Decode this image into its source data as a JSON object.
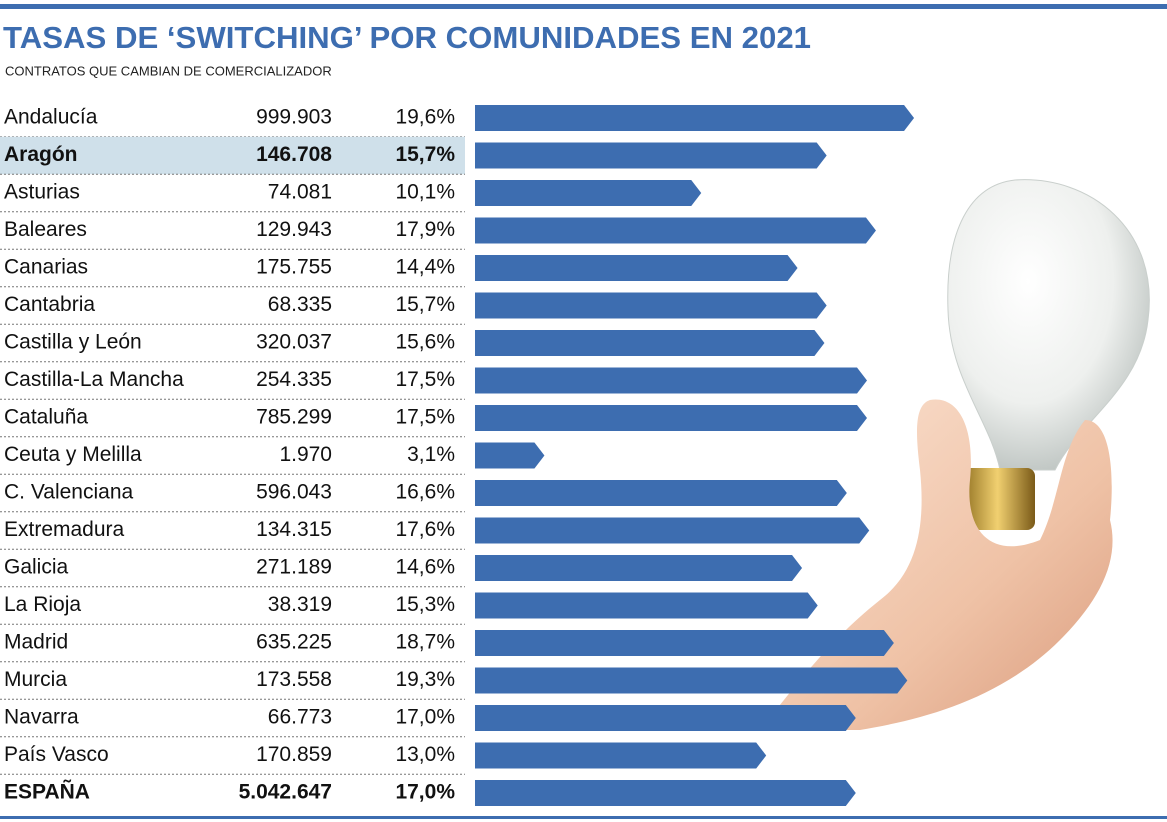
{
  "chart_data": {
    "type": "bar",
    "title": "TASAS DE ‘SWITCHING’ POR COMUNIDADES EN 2021",
    "subtitle": "CONTRATOS QUE CAMBIAN DE COMERCIALIZADOR",
    "categories": [
      "Andalucía",
      "Aragón",
      "Asturias",
      "Baleares",
      "Canarias",
      "Cantabria",
      "Castilla y León",
      "Castilla-La Mancha",
      "Cataluña",
      "Ceuta y Melilla",
      "C. Valenciana",
      "Extremadura",
      "Galicia",
      "La Rioja",
      "Madrid",
      "Murcia",
      "Navarra",
      "País Vasco",
      "ESPAÑA"
    ],
    "contracts": [
      999903,
      146708,
      74081,
      129943,
      175755,
      68335,
      320037,
      254335,
      785299,
      1970,
      596043,
      134315,
      271189,
      38319,
      635225,
      173558,
      66773,
      170859,
      5042647
    ],
    "contracts_labels": [
      "999.903",
      "146.708",
      "74.081",
      "129.943",
      "175.755",
      "68.335",
      "320.037",
      "254.335",
      "785.299",
      "1.970",
      "596.043",
      "134.315",
      "271.189",
      "38.319",
      "635.225",
      "173.558",
      "66.773",
      "170.859",
      "5.042.647"
    ],
    "values": [
      19.6,
      15.7,
      10.1,
      17.9,
      14.4,
      15.7,
      15.6,
      17.5,
      17.5,
      3.1,
      16.6,
      17.6,
      14.6,
      15.3,
      18.7,
      19.3,
      17.0,
      13.0,
      17.0
    ],
    "value_labels": [
      "19,6%",
      "15,7%",
      "10,1%",
      "17,9%",
      "14,4%",
      "15,7%",
      "15,6%",
      "17,5%",
      "17,5%",
      "3,1%",
      "16,6%",
      "17,6%",
      "14,6%",
      "15,3%",
      "18,7%",
      "19,3%",
      "17,0%",
      "13,0%",
      "17,0%"
    ],
    "color": "#3d6db0",
    "xlim": [
      0,
      20
    ],
    "highlight_rows": [
      1
    ],
    "bold_rows": [
      1,
      18
    ]
  }
}
